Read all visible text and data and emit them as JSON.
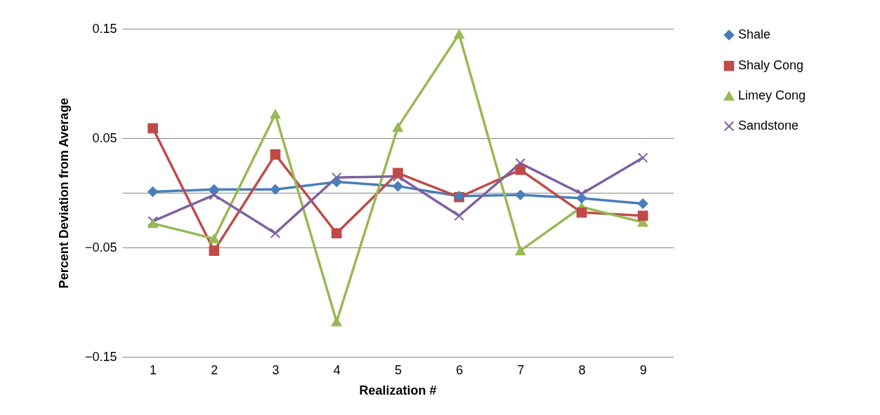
{
  "chart_data": {
    "type": "line",
    "xlabel": "Realization #",
    "ylabel": "Percent Deviation from Average",
    "categories": [
      "1",
      "2",
      "3",
      "4",
      "5",
      "6",
      "7",
      "8",
      "9"
    ],
    "ylim": [
      -0.15,
      0.15
    ],
    "yticks": [
      0.15,
      0.05,
      {
        "value": 0,
        "label": null
      },
      -0.05,
      -0.15
    ],
    "grid": "y",
    "legend": "right",
    "series": [
      {
        "name": "Shale",
        "color": "#4a7ebb",
        "marker": "diamond",
        "values": [
          0.001,
          0.003,
          0.003,
          0.01,
          0.006,
          -0.003,
          -0.002,
          -0.005,
          -0.01
        ]
      },
      {
        "name": "Shaly Cong",
        "color": "#be4b48",
        "marker": "square",
        "values": [
          0.059,
          -0.053,
          0.035,
          -0.037,
          0.018,
          -0.004,
          0.021,
          -0.018,
          -0.021
        ]
      },
      {
        "name": "Limey Cong",
        "color": "#98b954",
        "marker": "triangle",
        "values": [
          -0.028,
          -0.042,
          0.072,
          -0.118,
          0.06,
          0.145,
          -0.053,
          -0.013,
          -0.027
        ]
      },
      {
        "name": "Sandstone",
        "color": "#7d60a0",
        "marker": "cross",
        "values": [
          -0.026,
          -0.002,
          -0.037,
          0.014,
          0.015,
          -0.021,
          0.027,
          -0.001,
          0.032
        ]
      }
    ]
  }
}
